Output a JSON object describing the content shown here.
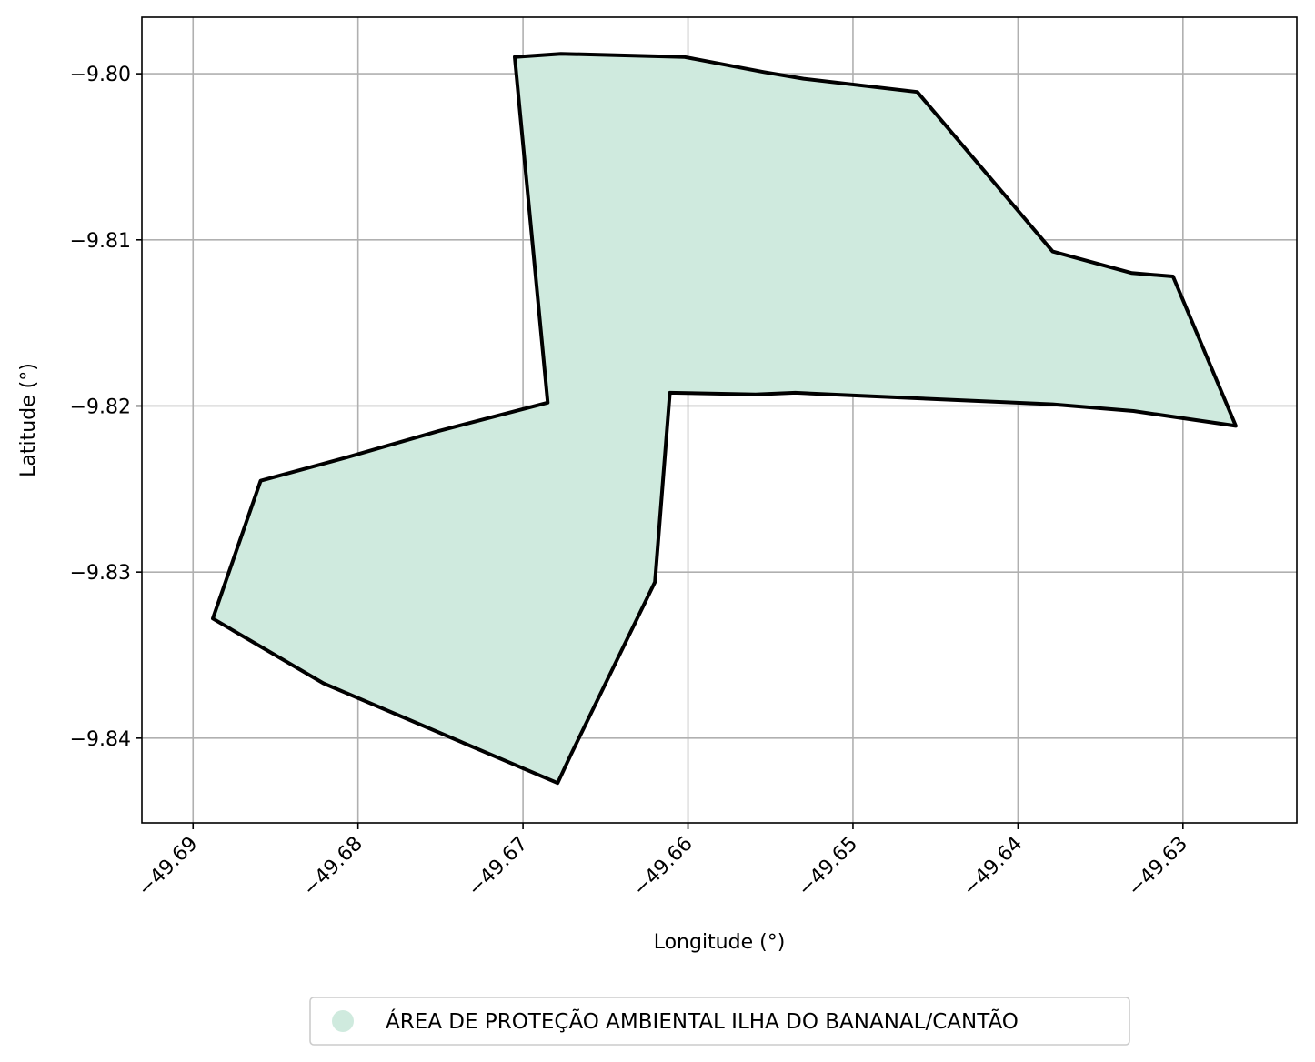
{
  "chart_data": {
    "type": "map",
    "xlabel": "Longitude (°)",
    "ylabel": "Latitude (°)",
    "xlim": [
      -49.6931,
      -49.6231
    ],
    "ylim": [
      -9.8451,
      -9.7966
    ],
    "grid": true,
    "x_ticks": [
      {
        "value": -49.69,
        "label": "−49.69"
      },
      {
        "value": -49.68,
        "label": "−49.68"
      },
      {
        "value": -49.67,
        "label": "−49.67"
      },
      {
        "value": -49.66,
        "label": "−49.66"
      },
      {
        "value": -49.65,
        "label": "−49.65"
      },
      {
        "value": -49.64,
        "label": "−49.64"
      },
      {
        "value": -49.63,
        "label": "−49.63"
      }
    ],
    "y_ticks": [
      {
        "value": -9.8,
        "label": "−9.80"
      },
      {
        "value": -9.81,
        "label": "−9.81"
      },
      {
        "value": -9.82,
        "label": "−9.82"
      },
      {
        "value": -9.83,
        "label": "−9.83"
      },
      {
        "value": -9.84,
        "label": "−9.84"
      }
    ],
    "polygon": {
      "name": "ÁREA DE PROTEÇÃO AMBIENTAL ILHA DO BANANAL/CANTÃO",
      "fill_color": "#cfeade",
      "edge_color": "#000000",
      "coordinates": [
        [
          -49.6705,
          -9.799
        ],
        [
          -49.6677,
          -9.7988
        ],
        [
          -49.6602,
          -9.799
        ],
        [
          -49.6554,
          -9.7999
        ],
        [
          -49.653,
          -9.8003
        ],
        [
          -49.6461,
          -9.8011
        ],
        [
          -49.6379,
          -9.8107
        ],
        [
          -49.6331,
          -9.812
        ],
        [
          -49.6306,
          -9.8122
        ],
        [
          -49.6268,
          -9.8212
        ],
        [
          -49.633,
          -9.8203
        ],
        [
          -49.6379,
          -9.8199
        ],
        [
          -49.6492,
          -9.8194
        ],
        [
          -49.6535,
          -9.8192
        ],
        [
          -49.6559,
          -9.8193
        ],
        [
          -49.6611,
          -9.8192
        ],
        [
          -49.662,
          -9.8306
        ],
        [
          -49.6671,
          -9.841
        ],
        [
          -49.6679,
          -9.8427
        ],
        [
          -49.6821,
          -9.8367
        ],
        [
          -49.6888,
          -9.8328
        ],
        [
          -49.6859,
          -9.8245
        ],
        [
          -49.6807,
          -9.8231
        ],
        [
          -49.6751,
          -9.8215
        ],
        [
          -49.6685,
          -9.8198
        ],
        [
          -49.6705,
          -9.799
        ]
      ]
    },
    "legend": {
      "placement": "bottom-center",
      "entries": [
        {
          "label": "ÁREA DE PROTEÇÃO AMBIENTAL ILHA DO BANANAL/CANTÃO",
          "color": "#cfeade"
        }
      ]
    }
  }
}
